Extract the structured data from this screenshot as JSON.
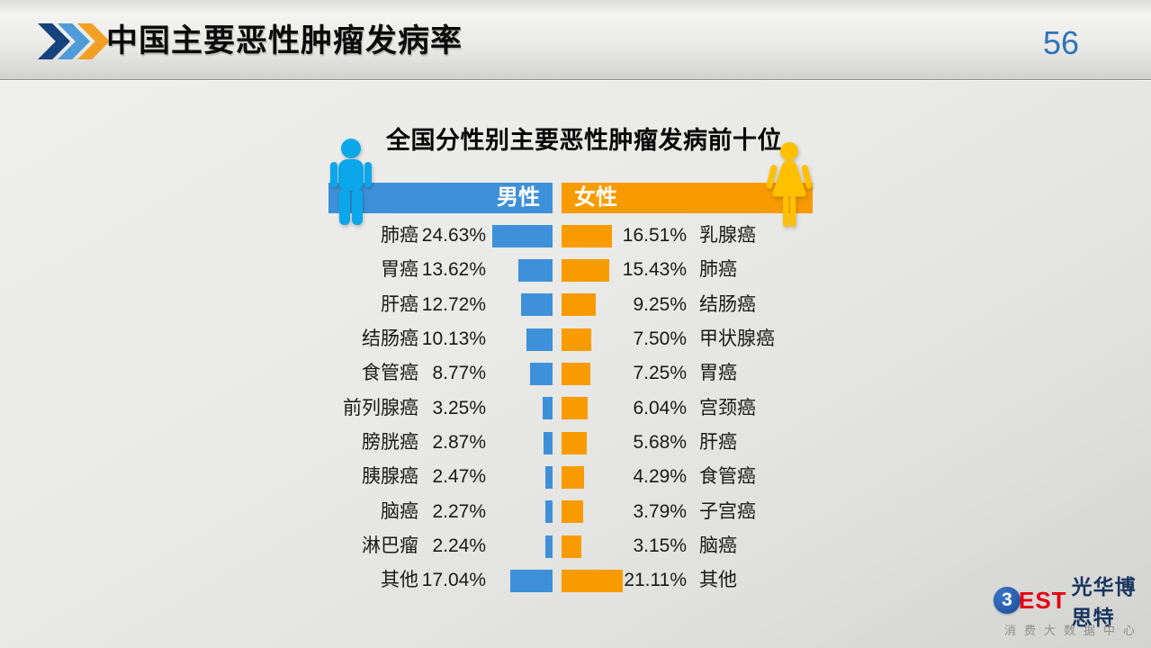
{
  "header": {
    "title": "中国主要恶性肿瘤发病率",
    "page_number": "56"
  },
  "chart": {
    "title": "全国分性别主要恶性肿瘤发病前十位",
    "male_header_label": "男性",
    "female_header_label": "女性"
  },
  "chart_data": {
    "type": "bar",
    "orientation": "horizontal",
    "variant": "paired-tornado",
    "title": "全国分性别主要恶性肿瘤发病前十位",
    "unit": "%",
    "series_names": [
      "男性",
      "女性"
    ],
    "rows": [
      {
        "male_label": "肺癌",
        "male_value": 24.63,
        "female_value": 16.51,
        "female_label": "乳腺癌"
      },
      {
        "male_label": "胃癌",
        "male_value": 13.62,
        "female_value": 15.43,
        "female_label": "肺癌"
      },
      {
        "male_label": "肝癌",
        "male_value": 12.72,
        "female_value": 9.25,
        "female_label": "结肠癌"
      },
      {
        "male_label": "结肠癌",
        "male_value": 10.13,
        "female_value": 7.5,
        "female_label": "甲状腺癌"
      },
      {
        "male_label": "食管癌",
        "male_value": 8.77,
        "female_value": 7.25,
        "female_label": "胃癌"
      },
      {
        "male_label": "前列腺癌",
        "male_value": 3.25,
        "female_value": 6.04,
        "female_label": "宫颈癌"
      },
      {
        "male_label": "膀胱癌",
        "male_value": 2.87,
        "female_value": 5.68,
        "female_label": "肝癌"
      },
      {
        "male_label": "胰腺癌",
        "male_value": 2.47,
        "female_value": 4.29,
        "female_label": "食管癌"
      },
      {
        "male_label": "脑癌",
        "male_value": 2.27,
        "female_value": 3.79,
        "female_label": "子宫癌"
      },
      {
        "male_label": "淋巴瘤",
        "male_value": 2.24,
        "female_value": 3.15,
        "female_label": "脑癌"
      },
      {
        "male_label": "其他",
        "male_value": 17.04,
        "female_value": 21.11,
        "female_label": "其他"
      }
    ]
  },
  "footer": {
    "logo_b": "3",
    "logo_est": "EST",
    "logo_name": "光华博思特",
    "logo_tagline": "消费大数据中心"
  },
  "colors": {
    "male_bar": "#3e91d8",
    "female_bar": "#f89b00",
    "male_icon": "#0ba7ea",
    "female_icon": "#ffc001",
    "page_number": "#2e74b8",
    "chevrons": [
      "#16427e",
      "#4f9bd8",
      "#f2a024"
    ],
    "logo_red": "#e60012",
    "logo_navy": "#17355e"
  }
}
